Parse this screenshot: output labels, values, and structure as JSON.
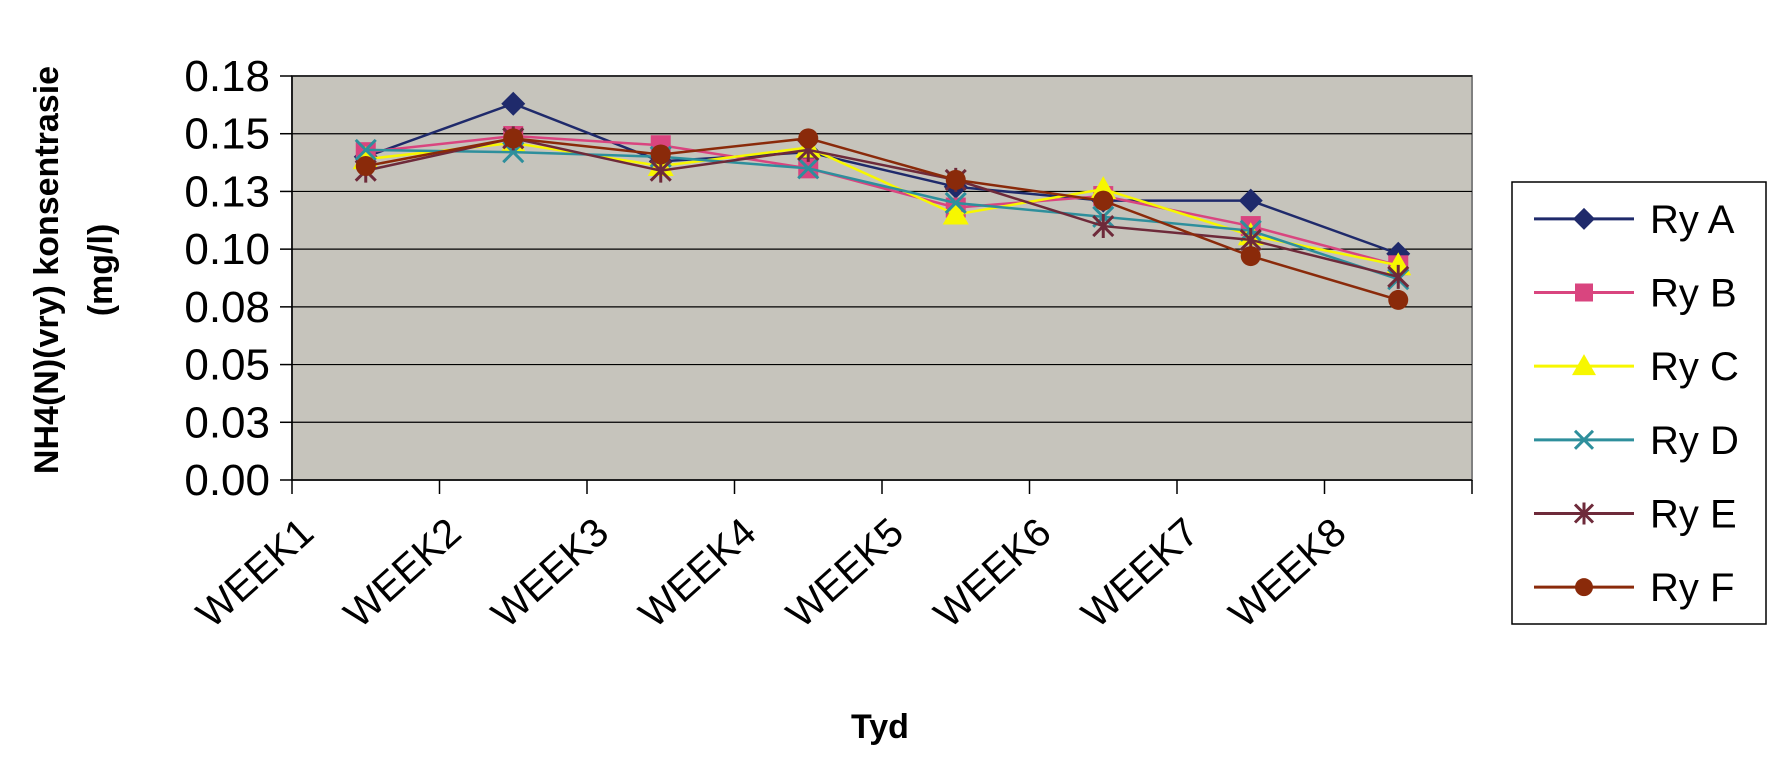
{
  "chart_data": {
    "type": "line",
    "title": "",
    "xlabel": "Tyd",
    "ylabel_lines": [
      "NH4(N)(vry) konsentrasie",
      "(mg/l)"
    ],
    "categories": [
      "WEEK1",
      "WEEK2",
      "WEEK3",
      "WEEK4",
      "WEEK5",
      "WEEK6",
      "WEEK7",
      "WEEK8"
    ],
    "ylim": [
      0,
      0.175
    ],
    "yticks": [
      0.0,
      0.025,
      0.05,
      0.075,
      0.1,
      0.125,
      0.15,
      0.175
    ],
    "ytick_labels": [
      "0.00",
      "0.03",
      "0.05",
      "0.08",
      "0.10",
      "0.13",
      "0.15",
      "0.18"
    ],
    "grid": true,
    "legend_position": "right",
    "plot_background": "#c6c4bc",
    "series": [
      {
        "name": "Ry A",
        "color": "#1f2a6b",
        "marker": "diamond",
        "values": [
          0.14,
          0.163,
          0.138,
          0.142,
          0.127,
          0.121,
          0.121,
          0.098
        ]
      },
      {
        "name": "Ry B",
        "color": "#d9457f",
        "marker": "square",
        "values": [
          0.142,
          0.149,
          0.145,
          0.135,
          0.118,
          0.123,
          0.11,
          0.093
        ]
      },
      {
        "name": "Ry C",
        "color": "#f7f700",
        "marker": "triangle",
        "values": [
          0.139,
          0.146,
          0.136,
          0.144,
          0.115,
          0.126,
          0.106,
          0.093
        ]
      },
      {
        "name": "Ry D",
        "color": "#2e8f9c",
        "marker": "x",
        "values": [
          0.143,
          0.142,
          0.14,
          0.135,
          0.12,
          0.114,
          0.108,
          0.087
        ]
      },
      {
        "name": "Ry E",
        "color": "#6e2a3a",
        "marker": "star",
        "values": [
          0.134,
          0.148,
          0.134,
          0.143,
          0.13,
          0.11,
          0.104,
          0.088
        ]
      },
      {
        "name": "Ry F",
        "color": "#8a2a0a",
        "marker": "circle",
        "values": [
          0.136,
          0.148,
          0.141,
          0.148,
          0.13,
          0.121,
          0.097,
          0.078
        ]
      }
    ]
  }
}
